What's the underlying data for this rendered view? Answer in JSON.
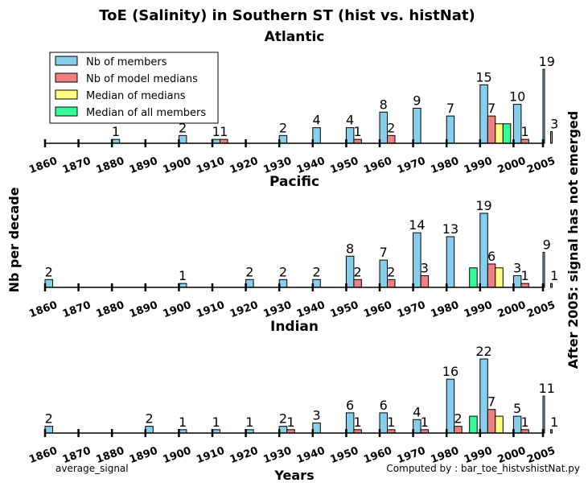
{
  "title": "ToE (Salinity) in Southern ST (hist vs. histNat)",
  "ylabel": "Nb per decade",
  "xlabel": "Years",
  "right_label": "After 2005: signal has not emerged",
  "footer_left": "average_signal",
  "footer_right": "Computed by : bar_toe_histvshistNat.py",
  "legend": [
    {
      "label": "Nb of members",
      "color": "#87ceeb"
    },
    {
      "label": "Nb of model medians",
      "color": "#f08080"
    },
    {
      "label": "Median of medians",
      "color": "#ffff80"
    },
    {
      "label": "Median of all members",
      "color": "#33ff99"
    }
  ],
  "chart_data": {
    "type": "bar",
    "x_ticks": [
      "1860",
      "1870",
      "1880",
      "1890",
      "1900",
      "1910",
      "1920",
      "1930",
      "1940",
      "1950",
      "1960",
      "1970",
      "1980",
      "1990",
      "2000",
      "2005"
    ],
    "panels": [
      {
        "title": "Atlantic",
        "ymax": 19,
        "series": [
          {
            "name": "Nb of members",
            "color": "#87ceeb",
            "x": [
              1880,
              1900,
              1910,
              1930,
              1940,
              1950,
              1960,
              1970,
              1980,
              1990,
              2000,
              2005
            ],
            "values": [
              1,
              2,
              1,
              2,
              4,
              4,
              8,
              9,
              7,
              15,
              10,
              19
            ],
            "labels": [
              true,
              true,
              true,
              true,
              true,
              true,
              true,
              true,
              true,
              true,
              true,
              true
            ]
          },
          {
            "name": "Nb of model medians",
            "color": "#f08080",
            "x": [
              1910,
              1950,
              1960,
              1990,
              2000,
              2005
            ],
            "values": [
              1,
              1,
              2,
              7,
              1,
              3
            ],
            "labels": [
              true,
              true,
              true,
              true,
              true,
              true
            ]
          },
          {
            "name": "Median of medians",
            "color": "#ffff80",
            "x": [
              1990
            ],
            "values": [
              5
            ],
            "labels": [
              false
            ]
          },
          {
            "name": "Median of all members",
            "color": "#33ff99",
            "x": [
              1990
            ],
            "values": [
              5
            ],
            "labels": [
              false
            ]
          }
        ]
      },
      {
        "title": "Pacific",
        "ymax": 19,
        "series": [
          {
            "name": "Nb of members",
            "color": "#87ceeb",
            "x": [
              1860,
              1900,
              1920,
              1930,
              1940,
              1950,
              1960,
              1970,
              1980,
              1990,
              2000,
              2005
            ],
            "values": [
              2,
              1,
              2,
              2,
              2,
              8,
              7,
              14,
              13,
              19,
              3,
              9
            ],
            "labels": [
              true,
              true,
              true,
              true,
              true,
              true,
              true,
              true,
              true,
              true,
              true,
              true
            ]
          },
          {
            "name": "Nb of model medians",
            "color": "#f08080",
            "x": [
              1950,
              1960,
              1970,
              1990,
              2000,
              2005
            ],
            "values": [
              2,
              2,
              3,
              6,
              1,
              1
            ],
            "labels": [
              true,
              true,
              true,
              true,
              true,
              true
            ]
          },
          {
            "name": "Median of medians",
            "color": "#ffff80",
            "x": [
              1990
            ],
            "values": [
              5
            ],
            "labels": [
              false
            ]
          },
          {
            "name": "Median of all members",
            "color": "#33ff99",
            "x": [
              1980
            ],
            "values": [
              5
            ],
            "labels": [
              false
            ]
          }
        ]
      },
      {
        "title": "Indian",
        "ymax": 22,
        "series": [
          {
            "name": "Nb of members",
            "color": "#87ceeb",
            "x": [
              1860,
              1890,
              1900,
              1910,
              1920,
              1930,
              1940,
              1950,
              1960,
              1970,
              1980,
              1990,
              2000,
              2005
            ],
            "values": [
              2,
              2,
              1,
              1,
              1,
              2,
              3,
              6,
              6,
              4,
              16,
              22,
              5,
              11
            ],
            "labels": [
              true,
              true,
              true,
              true,
              true,
              true,
              true,
              true,
              true,
              true,
              true,
              true,
              true,
              true
            ]
          },
          {
            "name": "Nb of model medians",
            "color": "#f08080",
            "x": [
              1930,
              1950,
              1960,
              1970,
              1980,
              1990,
              2000,
              2005
            ],
            "values": [
              1,
              1,
              1,
              1,
              2,
              7,
              1,
              1
            ],
            "labels": [
              true,
              true,
              true,
              true,
              true,
              true,
              true,
              true
            ]
          },
          {
            "name": "Median of medians",
            "color": "#ffff80",
            "x": [
              1990
            ],
            "values": [
              5
            ],
            "labels": [
              false
            ]
          },
          {
            "name": "Median of all members",
            "color": "#33ff99",
            "x": [
              1980
            ],
            "values": [
              5
            ],
            "labels": [
              false
            ]
          }
        ]
      }
    ]
  }
}
